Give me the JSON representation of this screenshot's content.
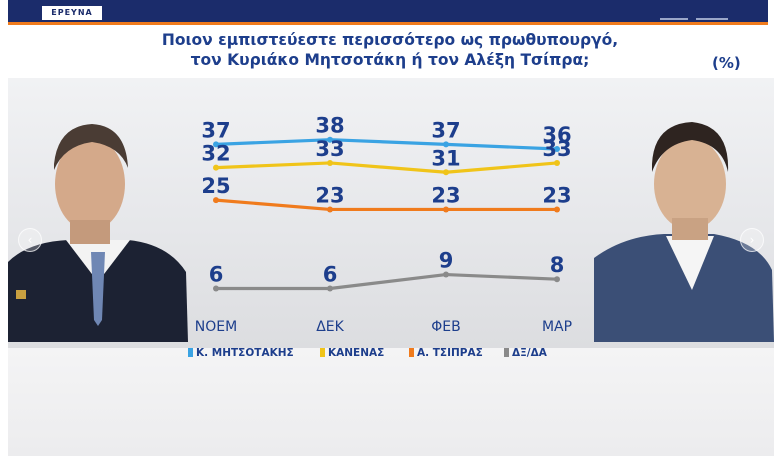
{
  "brand": {
    "logo_text": "ΕΡΕΥΝΑ"
  },
  "headline": {
    "line1": "Ποιον εμπιστεύεστε περισσότερο ως πρωθυπουργό,",
    "line2": "τον Κυριάκο Μητσοτάκη ή τον Αλέξη Τσίπρα;",
    "unit": "(%)"
  },
  "colors": {
    "navy": "#1d3e8c",
    "accent": "#f07b1d",
    "series_mitsotakis": "#3aa3e3",
    "series_kanenas": "#f0c419",
    "series_tsipras": "#f07b1d",
    "series_dxda": "#8a8a8a"
  },
  "icons": {
    "prev": "chevron-left-icon",
    "next": "chevron-right-icon"
  },
  "chart_data": {
    "type": "line",
    "title": "Ποιον εμπιστεύεστε περισσότερο ως πρωθυπουργό, τον Κυριάκο Μητσοτάκη ή τον Αλέξη Τσίπρα;",
    "categories": [
      "ΝΟΕΜ",
      "ΔΕΚ",
      "ΦΕΒ",
      "ΜΑΡ"
    ],
    "unit": "(%)",
    "ylim": [
      0,
      40
    ],
    "grid": false,
    "legend_position": "bottom",
    "series": [
      {
        "name": "Κ. ΜΗΤΣΟΤΑΚΗΣ",
        "color": "#3aa3e3",
        "values": [
          37,
          38,
          37,
          36
        ]
      },
      {
        "name": "ΚΑΝΕΝΑΣ",
        "color": "#f0c419",
        "values": [
          32,
          33,
          31,
          33
        ]
      },
      {
        "name": "Α. ΤΣΙΠΡΑΣ",
        "color": "#f07b1d",
        "values": [
          25,
          23,
          23,
          23
        ]
      },
      {
        "name": "ΔΞ/ΔΑ",
        "color": "#8a8a8a",
        "values": [
          6,
          6,
          9,
          8
        ]
      }
    ]
  }
}
